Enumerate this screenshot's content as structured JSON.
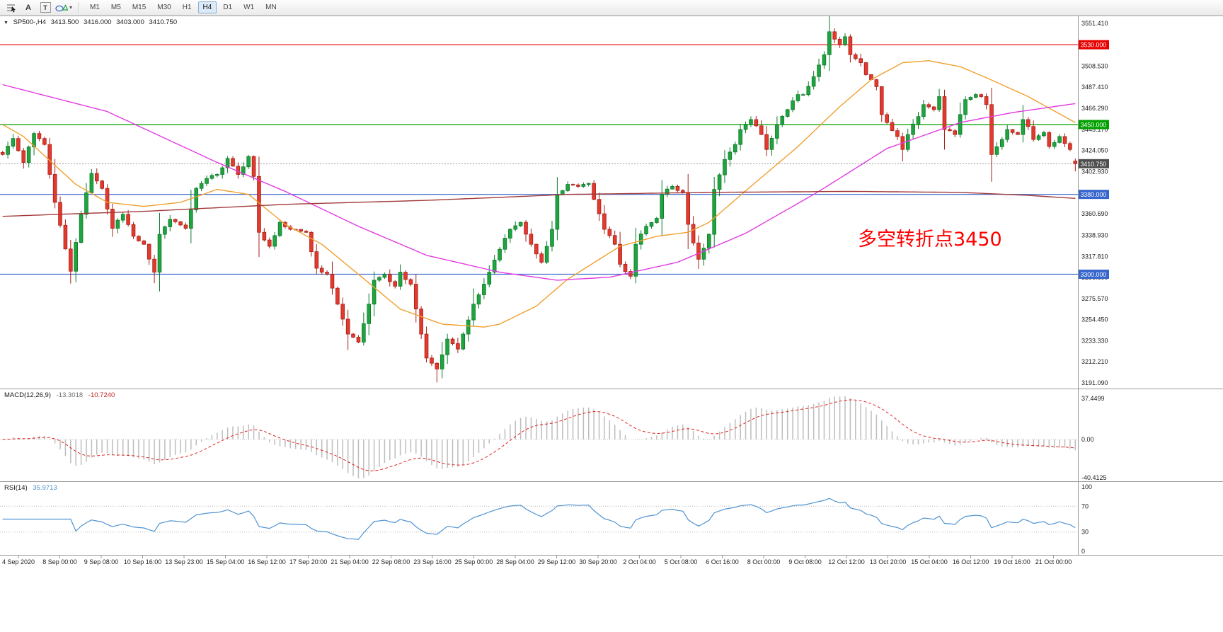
{
  "toolbar": {
    "tool_a_label": "A",
    "tool_t_label": "T",
    "caret": "▾",
    "timeframes": [
      "M1",
      "M5",
      "M15",
      "M30",
      "H1",
      "H4",
      "D1",
      "W1",
      "MN"
    ],
    "active": "H4"
  },
  "chart": {
    "symbol_line": {
      "marker": "▼",
      "title": "SP500-,H4",
      "open": "3413.500",
      "high": "3416.000",
      "low": "3403.000",
      "close": "3410.750"
    },
    "annotation": {
      "text": "多空转折点3450",
      "color": "#ff0000"
    }
  },
  "chart_data": {
    "type": "candlestick",
    "symbol": "SP500-",
    "timeframe": "H4",
    "bars": 206,
    "last_ohlc": [
      3413.5,
      3416.0,
      3403.0,
      3410.75
    ],
    "candle_colors": {
      "up": "#1fa43f",
      "up_border": "#0c7a2a",
      "down": "#e23a2e",
      "down_border": "#a81f17"
    },
    "price_axis": {
      "top_tick": 3551.41,
      "bottom_tick": 3191.09,
      "tick_labels": [
        "3551.410",
        "3508.530",
        "3487.410",
        "3466.290",
        "3445.170",
        "3424.050",
        "3402.930",
        "3360.690",
        "3338.930",
        "3317.810",
        "3296.690",
        "3275.570",
        "3254.450",
        "3233.330",
        "3212.210",
        "3191.090"
      ]
    },
    "close_waypoints": [
      [
        0,
        3420
      ],
      [
        2,
        3436
      ],
      [
        4,
        3412
      ],
      [
        6,
        3441
      ],
      [
        8,
        3430
      ],
      [
        10,
        3372
      ],
      [
        13,
        3303
      ],
      [
        15,
        3360
      ],
      [
        17,
        3401
      ],
      [
        19,
        3386
      ],
      [
        21,
        3346
      ],
      [
        23,
        3360
      ],
      [
        25,
        3338
      ],
      [
        27,
        3330
      ],
      [
        29,
        3302
      ],
      [
        30,
        3340
      ],
      [
        32,
        3355
      ],
      [
        35,
        3346
      ],
      [
        37,
        3386
      ],
      [
        39,
        3396
      ],
      [
        41,
        3400
      ],
      [
        43,
        3416
      ],
      [
        45,
        3400
      ],
      [
        47,
        3418
      ],
      [
        48,
        3398
      ],
      [
        49,
        3342
      ],
      [
        51,
        3328
      ],
      [
        53,
        3352
      ],
      [
        55,
        3345
      ],
      [
        58,
        3342
      ],
      [
        60,
        3306
      ],
      [
        62,
        3300
      ],
      [
        64,
        3270
      ],
      [
        66,
        3240
      ],
      [
        68,
        3232
      ],
      [
        70,
        3270
      ],
      [
        71,
        3294
      ],
      [
        73,
        3300
      ],
      [
        75,
        3288
      ],
      [
        76,
        3302
      ],
      [
        78,
        3290
      ],
      [
        80,
        3240
      ],
      [
        81,
        3216
      ],
      [
        83,
        3205
      ],
      [
        85,
        3235
      ],
      [
        87,
        3225
      ],
      [
        88,
        3240
      ],
      [
        90,
        3270
      ],
      [
        92,
        3290
      ],
      [
        93,
        3302
      ],
      [
        95,
        3325
      ],
      [
        97,
        3345
      ],
      [
        99,
        3352
      ],
      [
        101,
        3330
      ],
      [
        103,
        3312
      ],
      [
        105,
        3345
      ],
      [
        106,
        3380
      ],
      [
        108,
        3390
      ],
      [
        110,
        3388
      ],
      [
        112,
        3391
      ],
      [
        113,
        3375
      ],
      [
        115,
        3345
      ],
      [
        117,
        3330
      ],
      [
        118,
        3310
      ],
      [
        120,
        3298
      ],
      [
        121,
        3330
      ],
      [
        123,
        3348
      ],
      [
        125,
        3356
      ],
      [
        126,
        3380
      ],
      [
        128,
        3388
      ],
      [
        130,
        3382
      ],
      [
        131,
        3350
      ],
      [
        133,
        3315
      ],
      [
        135,
        3340
      ],
      [
        136,
        3385
      ],
      [
        138,
        3415
      ],
      [
        140,
        3430
      ],
      [
        141,
        3445
      ],
      [
        143,
        3455
      ],
      [
        145,
        3440
      ],
      [
        146,
        3425
      ],
      [
        148,
        3450
      ],
      [
        150,
        3465
      ],
      [
        152,
        3480
      ],
      [
        153,
        3480
      ],
      [
        155,
        3498
      ],
      [
        157,
        3520
      ],
      [
        158,
        3543
      ],
      [
        160,
        3530
      ],
      [
        161,
        3538
      ],
      [
        162,
        3520
      ],
      [
        164,
        3512
      ],
      [
        165,
        3500
      ],
      [
        167,
        3488
      ],
      [
        168,
        3460
      ],
      [
        169,
        3452
      ],
      [
        171,
        3438
      ],
      [
        172,
        3425
      ],
      [
        173,
        3440
      ],
      [
        175,
        3458
      ],
      [
        176,
        3470
      ],
      [
        178,
        3465
      ],
      [
        179,
        3478
      ],
      [
        180,
        3445
      ],
      [
        182,
        3440
      ],
      [
        183,
        3460
      ],
      [
        184,
        3475
      ],
      [
        186,
        3480
      ],
      [
        187,
        3478
      ],
      [
        188,
        3470
      ],
      [
        189,
        3420
      ],
      [
        191,
        3435
      ],
      [
        192,
        3445
      ],
      [
        194,
        3440
      ],
      [
        195,
        3455
      ],
      [
        196,
        3448
      ],
      [
        197,
        3435
      ],
      [
        199,
        3442
      ],
      [
        200,
        3428
      ],
      [
        201,
        3432
      ],
      [
        202,
        3438
      ],
      [
        204,
        3425
      ],
      [
        205,
        3411
      ]
    ],
    "extreme_wicks": [
      [
        13,
        "L",
        3298.0
      ],
      [
        29,
        "L",
        3291.0
      ],
      [
        66,
        "L",
        3224.0
      ],
      [
        83,
        "L",
        3191.5
      ],
      [
        120,
        "L",
        3295.0
      ],
      [
        158,
        "H",
        3551.0
      ],
      [
        172,
        "L",
        3413.0
      ],
      [
        189,
        "L",
        3409.5
      ]
    ],
    "horizontal_lines": [
      {
        "price": 3530.0,
        "label": "3530.000",
        "color": "#e60000"
      },
      {
        "price": 3450.0,
        "label": "3450.000",
        "color": "#00a000"
      },
      {
        "price": 3380.0,
        "label": "3380.000",
        "color": "#3565cd"
      },
      {
        "price": 3300.0,
        "label": "3300.000",
        "color": "#3565cd"
      }
    ],
    "current_price": {
      "value": 3410.75,
      "label": "3410.750",
      "badge_color": "#4d4d4d"
    },
    "moving_averages": [
      {
        "name": "ma-medium-orange",
        "color": "#f0a030",
        "points": [
          [
            0,
            3450
          ],
          [
            4,
            3438
          ],
          [
            14,
            3390
          ],
          [
            20,
            3372
          ],
          [
            27,
            3368
          ],
          [
            34,
            3372
          ],
          [
            41,
            3385
          ],
          [
            47,
            3380
          ],
          [
            54,
            3350
          ],
          [
            61,
            3330
          ],
          [
            68,
            3300
          ],
          [
            76,
            3265
          ],
          [
            84,
            3250
          ],
          [
            92,
            3247
          ],
          [
            95,
            3250
          ],
          [
            102,
            3268
          ],
          [
            108,
            3295
          ],
          [
            118,
            3328
          ],
          [
            125,
            3338
          ],
          [
            131,
            3342
          ],
          [
            135,
            3352
          ],
          [
            143,
            3388
          ],
          [
            152,
            3428
          ],
          [
            160,
            3468
          ],
          [
            166,
            3495
          ],
          [
            172,
            3512
          ],
          [
            177,
            3514
          ],
          [
            183,
            3508
          ],
          [
            188,
            3497
          ],
          [
            196,
            3478
          ],
          [
            205,
            3452
          ]
        ]
      },
      {
        "name": "ma-slow-magenta",
        "color": "#e23be2",
        "points": [
          [
            0,
            3490
          ],
          [
            20,
            3463
          ],
          [
            41,
            3412
          ],
          [
            54,
            3383
          ],
          [
            68,
            3348
          ],
          [
            81,
            3319
          ],
          [
            95,
            3302
          ],
          [
            106,
            3294
          ],
          [
            116,
            3297
          ],
          [
            129,
            3312
          ],
          [
            142,
            3341
          ],
          [
            156,
            3383
          ],
          [
            169,
            3426
          ],
          [
            183,
            3452
          ],
          [
            193,
            3462
          ],
          [
            205,
            3471
          ]
        ]
      },
      {
        "name": "ma-long-darkred",
        "color": "#a33a3a",
        "points": [
          [
            0,
            3358
          ],
          [
            27,
            3363
          ],
          [
            54,
            3370
          ],
          [
            81,
            3374
          ],
          [
            95,
            3377
          ],
          [
            108,
            3380
          ],
          [
            122,
            3381
          ],
          [
            135,
            3382
          ],
          [
            162,
            3383
          ],
          [
            183,
            3382
          ],
          [
            196,
            3379
          ],
          [
            205,
            3376
          ]
        ]
      }
    ],
    "macd": {
      "title": "MACD(12,26,9)",
      "params": "12,26,9",
      "display_main": "-13.3018",
      "display_signal": "-10.7240",
      "axis_max_label": "37.4499",
      "axis_zero_label": "0.00",
      "axis_min_label": "-40.4125",
      "histogram_color": "#bdbdbd",
      "signal_color": "#e02020"
    },
    "rsi": {
      "title": "RSI(14)",
      "params": "14",
      "display": "35.9713",
      "line_color": "#4f93d2",
      "levels": [
        "100",
        "70",
        "30",
        "0"
      ]
    },
    "time_labels": [
      "4 Sep 2020",
      "8 Sep 00:00",
      "9 Sep 08:00",
      "10 Sep 16:00",
      "13 Sep 23:00",
      "15 Sep 04:00",
      "16 Sep 12:00",
      "17 Sep 20:00",
      "21 Sep 04:00",
      "22 Sep 08:00",
      "23 Sep 16:00",
      "25 Sep 00:00",
      "28 Sep 04:00",
      "29 Sep 12:00",
      "30 Sep 20:00",
      "2 Oct 04:00",
      "5 Oct 08:00",
      "6 Oct 16:00",
      "8 Oct 00:00",
      "9 Oct 08:00",
      "12 Oct 12:00",
      "13 Oct 20:00",
      "15 Oct 04:00",
      "16 Oct 12:00",
      "19 Oct 16:00",
      "21 Oct 00:00"
    ]
  }
}
